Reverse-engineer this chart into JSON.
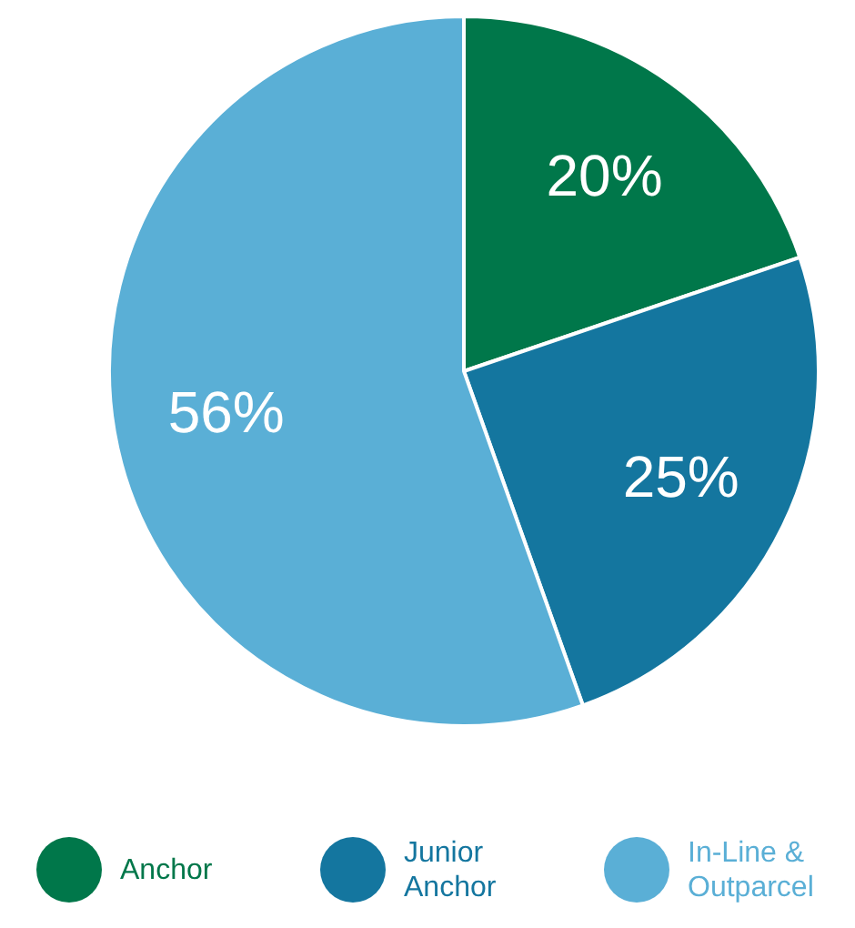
{
  "chart_data": {
    "type": "pie",
    "categories": [
      "Anchor",
      "Junior Anchor",
      "In-Line & Outparcel"
    ],
    "values": [
      20,
      25,
      56
    ],
    "colors": [
      "#00774a",
      "#14769f",
      "#5aafd6"
    ],
    "value_labels": [
      "20%",
      "25%",
      "56%"
    ],
    "legend": "bottom"
  }
}
